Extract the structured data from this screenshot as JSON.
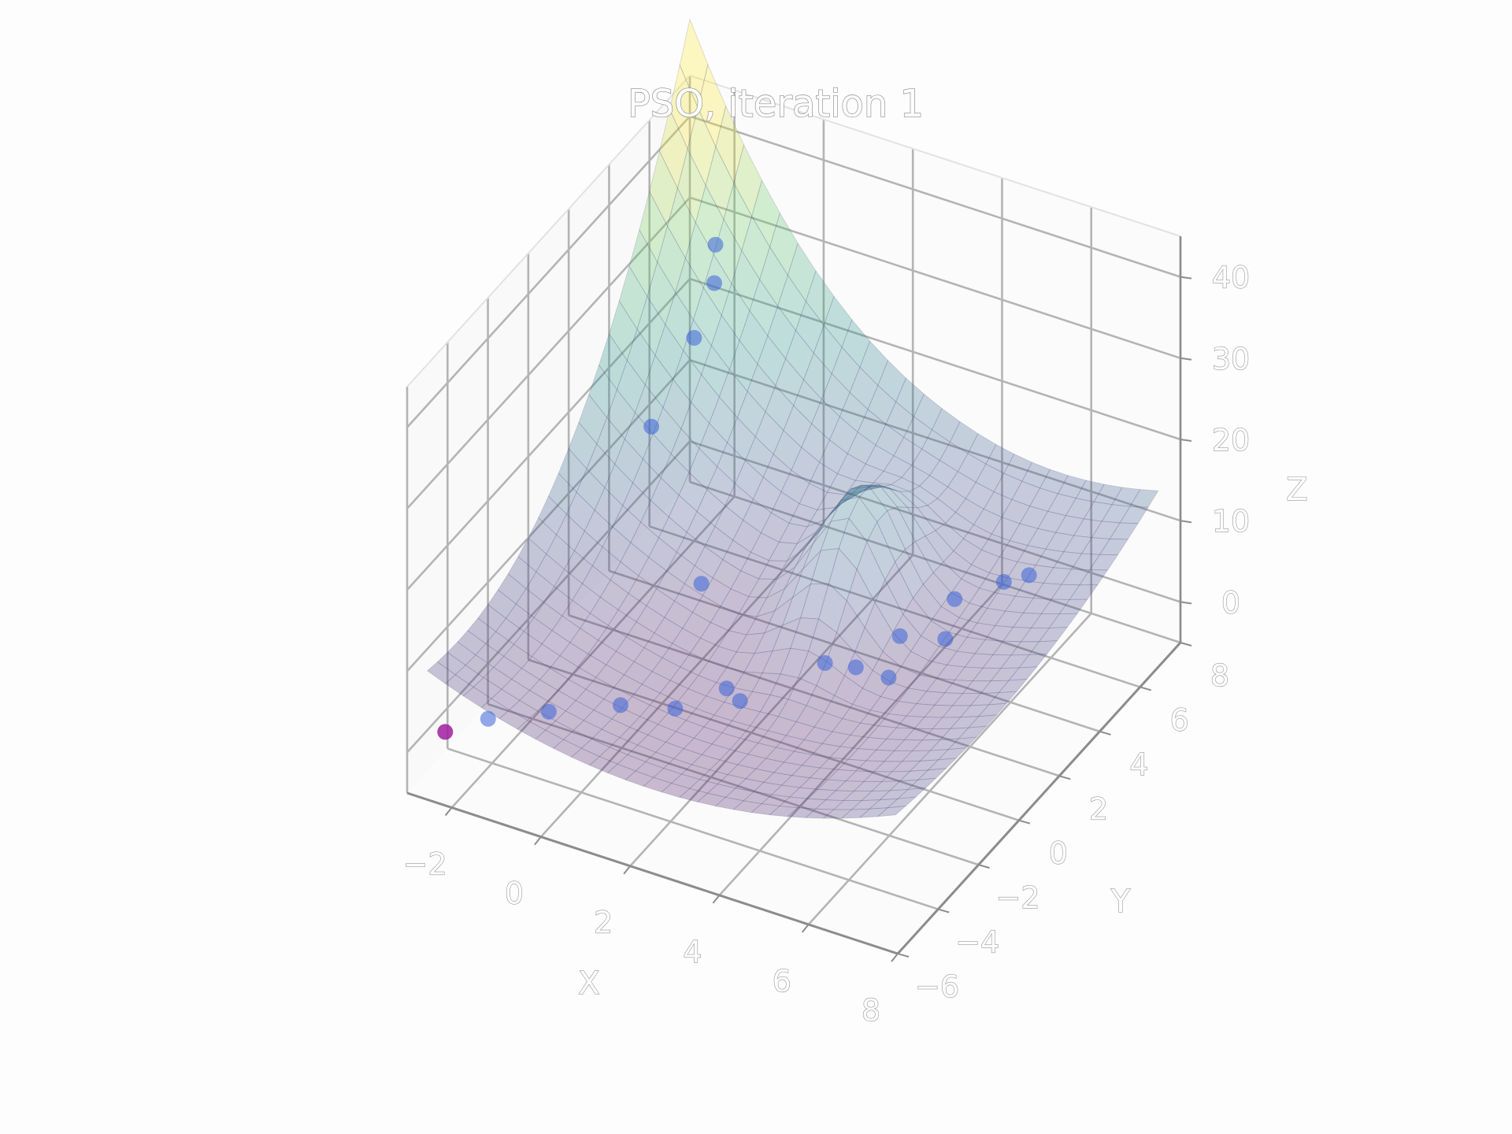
{
  "chart_data": {
    "type": "surface3d",
    "title": "PSO, iteration 1",
    "xlabel": "X",
    "ylabel": "Y",
    "zlabel": "Z",
    "xlim": [
      -3,
      8
    ],
    "ylim": [
      -6,
      8
    ],
    "zlim": [
      -5,
      45
    ],
    "x_ticks": [
      "−2",
      "0",
      "2",
      "4",
      "6",
      "8"
    ],
    "y_ticks": [
      "−6",
      "−4",
      "−2",
      "0",
      "2",
      "4",
      "6",
      "8"
    ],
    "z_ticks": [
      "0",
      "10",
      "20",
      "30",
      "40"
    ],
    "grid": true,
    "colormap": "viridis",
    "particles": [
      {
        "x": -2.6,
        "y": -5.0,
        "z": 0.5,
        "role": "best"
      },
      {
        "x": -2.0,
        "y": -4.2,
        "z": 1.0
      },
      {
        "x": -1.0,
        "y": -3.4,
        "z": 1.5
      },
      {
        "x": 0.2,
        "y": -2.5,
        "z": 2.0
      },
      {
        "x": 1.2,
        "y": -2.0,
        "z": 2.0
      },
      {
        "x": 1.9,
        "y": -1.0,
        "z": 3.0
      },
      {
        "x": 2.2,
        "y": -1.0,
        "z": 2.0
      },
      {
        "x": 3.2,
        "y": 1.0,
        "z": 3.0
      },
      {
        "x": 3.8,
        "y": 1.2,
        "z": 3.0
      },
      {
        "x": 4.4,
        "y": 1.5,
        "z": 2.0
      },
      {
        "x": 4.2,
        "y": 2.5,
        "z": 4.0
      },
      {
        "x": 4.9,
        "y": 3.2,
        "z": 3.0
      },
      {
        "x": 5.2,
        "y": 3.0,
        "z": 9.0
      },
      {
        "x": 5.4,
        "y": 5.0,
        "z": 6.0
      },
      {
        "x": 5.6,
        "y": 5.8,
        "z": 5.0
      },
      {
        "x": 0.2,
        "y": 1.5,
        "z": 6.0
      },
      {
        "x": -1.6,
        "y": 3.0,
        "z": 18.0
      },
      {
        "x": -2.0,
        "y": 6.0,
        "z": 20.0
      },
      {
        "x": -2.0,
        "y": 7.0,
        "z": 24.0
      },
      {
        "x": -2.2,
        "y": 7.5,
        "z": 27.0
      }
    ]
  }
}
